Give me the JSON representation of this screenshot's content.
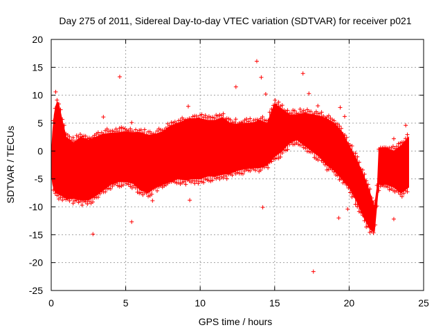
{
  "chart_data": {
    "type": "scatter",
    "title": "Day 275 of 2011, Sidereal Day-to-day VTEC variation (SDTVAR) for receiver p021",
    "xlabel": "GPS time / hours",
    "ylabel": "SDTVAR / TECUs",
    "xlim": [
      0,
      25
    ],
    "ylim": [
      -25,
      20
    ],
    "x_ticks": [
      0,
      5,
      10,
      15,
      20,
      25
    ],
    "y_ticks": [
      -25,
      -20,
      -15,
      -10,
      -5,
      0,
      5,
      10,
      15,
      20
    ],
    "grid": true,
    "marker": "+",
    "color": "#ff0000",
    "series": [
      {
        "name": "SDTVAR p021",
        "band_hours": [
          0.0,
          0.1,
          0.2,
          0.3,
          0.4,
          0.5,
          0.7,
          1.0,
          1.5,
          2.0,
          2.5,
          3.0,
          3.5,
          4.0,
          4.5,
          5.0,
          5.5,
          6.0,
          6.5,
          7.0,
          7.5,
          8.0,
          8.5,
          9.0,
          9.5,
          10.0,
          10.5,
          11.0,
          11.5,
          12.0,
          12.5,
          13.0,
          13.5,
          14.0,
          14.5,
          15.0,
          15.5,
          16.0,
          16.5,
          17.0,
          17.5,
          18.0,
          18.5,
          19.0,
          19.5,
          20.0,
          20.5,
          21.0,
          21.4,
          21.7,
          21.9,
          22.0,
          22.5,
          23.0,
          23.5,
          24.0
        ],
        "band_upper": [
          -1.0,
          3.5,
          6.5,
          8.0,
          8.8,
          8.5,
          6.0,
          2.5,
          1.5,
          2.5,
          2.0,
          2.5,
          3.0,
          3.2,
          3.3,
          3.5,
          3.3,
          3.3,
          2.8,
          3.0,
          3.5,
          4.5,
          5.0,
          5.5,
          5.8,
          5.8,
          5.5,
          5.5,
          6.0,
          5.0,
          4.8,
          5.0,
          5.0,
          5.5,
          5.0,
          8.5,
          7.5,
          6.5,
          6.5,
          6.8,
          6.5,
          6.3,
          5.8,
          5.0,
          3.5,
          1.0,
          -1.5,
          -4.5,
          -7.5,
          -10.0,
          -6.0,
          0.5,
          0.5,
          0.0,
          1.0,
          2.5
        ],
        "band_lower": [
          -4.0,
          -6.0,
          -7.0,
          -7.5,
          -7.5,
          -7.8,
          -8.0,
          -8.5,
          -8.5,
          -8.8,
          -8.8,
          -8.0,
          -7.0,
          -6.0,
          -5.5,
          -5.5,
          -5.8,
          -7.0,
          -7.5,
          -6.5,
          -6.0,
          -5.5,
          -5.0,
          -5.2,
          -5.0,
          -5.0,
          -4.5,
          -4.5,
          -4.2,
          -4.0,
          -3.5,
          -3.2,
          -3.0,
          -3.0,
          -2.5,
          -1.0,
          0.0,
          1.5,
          2.0,
          1.0,
          0.0,
          -1.0,
          -2.5,
          -3.5,
          -5.0,
          -6.5,
          -9.0,
          -12.0,
          -14.0,
          -14.5,
          -8.5,
          -6.0,
          -6.0,
          -6.5,
          -7.5,
          -6.5
        ],
        "outliers": [
          {
            "x": 0.3,
            "y": 10.6
          },
          {
            "x": 2.8,
            "y": -14.9
          },
          {
            "x": 3.5,
            "y": 6.1
          },
          {
            "x": 4.6,
            "y": 13.3
          },
          {
            "x": 5.4,
            "y": 5.1
          },
          {
            "x": 5.4,
            "y": -12.7
          },
          {
            "x": 6.8,
            "y": -8.9
          },
          {
            "x": 9.2,
            "y": 8.0
          },
          {
            "x": 9.3,
            "y": -8.8
          },
          {
            "x": 12.4,
            "y": 11.5
          },
          {
            "x": 13.8,
            "y": 16.1
          },
          {
            "x": 14.1,
            "y": 13.2
          },
          {
            "x": 14.4,
            "y": 10.2
          },
          {
            "x": 14.2,
            "y": -10.1
          },
          {
            "x": 16.9,
            "y": 13.9
          },
          {
            "x": 17.3,
            "y": 10.3
          },
          {
            "x": 17.6,
            "y": -21.6
          },
          {
            "x": 17.9,
            "y": 8.1
          },
          {
            "x": 19.3,
            "y": -12.0
          },
          {
            "x": 19.4,
            "y": 7.8
          },
          {
            "x": 19.7,
            "y": 6.2
          },
          {
            "x": 19.9,
            "y": -10.4
          },
          {
            "x": 23.0,
            "y": 2.2
          },
          {
            "x": 23.0,
            "y": -12.2
          },
          {
            "x": 23.8,
            "y": 4.6
          }
        ]
      }
    ]
  }
}
